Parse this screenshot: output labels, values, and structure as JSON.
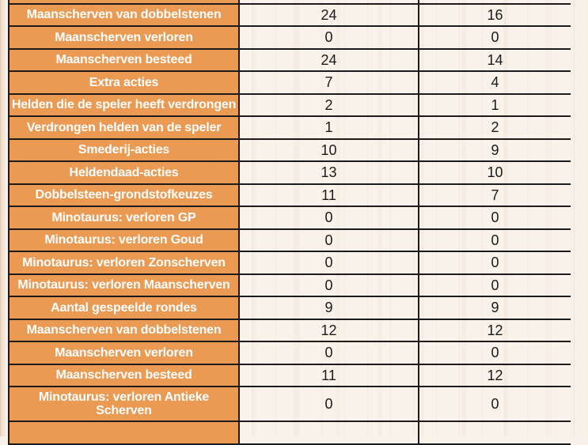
{
  "colors": {
    "page_background": "#f8f1ea",
    "table_border": "#1b1b1b",
    "label_cell_background": "#ea9a52",
    "label_text": "#ffffff",
    "value_text": "#1a1a1a"
  },
  "table": {
    "rows": [
      {
        "label": "",
        "values": [
          "",
          ""
        ]
      },
      {
        "label": "Maanscherven van dobbelstenen",
        "values": [
          "24",
          "16"
        ]
      },
      {
        "label": "Maanscherven verloren",
        "values": [
          "0",
          "0"
        ]
      },
      {
        "label": "Maanscherven besteed",
        "values": [
          "24",
          "14"
        ]
      },
      {
        "label": "Extra acties",
        "values": [
          "7",
          "4"
        ]
      },
      {
        "label": "Helden die de speler heeft verdrongen",
        "values": [
          "2",
          "1"
        ]
      },
      {
        "label": "Verdrongen helden van de speler",
        "values": [
          "1",
          "2"
        ]
      },
      {
        "label": "Smederij-acties",
        "values": [
          "10",
          "9"
        ]
      },
      {
        "label": "Heldendaad-acties",
        "values": [
          "13",
          "10"
        ]
      },
      {
        "label": "Dobbelsteen-grondstofkeuzes",
        "values": [
          "11",
          "7"
        ]
      },
      {
        "label": "Minotaurus: verloren GP",
        "values": [
          "0",
          "0"
        ]
      },
      {
        "label": "Minotaurus: verloren Goud",
        "values": [
          "0",
          "0"
        ]
      },
      {
        "label": "Minotaurus: verloren Zonscherven",
        "values": [
          "0",
          "0"
        ]
      },
      {
        "label": "Minotaurus: verloren Maanscherven",
        "values": [
          "0",
          "0"
        ]
      },
      {
        "label": "Aantal gespeelde rondes",
        "values": [
          "9",
          "9"
        ]
      },
      {
        "label": "Maanscherven van dobbelstenen",
        "values": [
          "12",
          "12"
        ]
      },
      {
        "label": "Maanscherven verloren",
        "values": [
          "0",
          "0"
        ]
      },
      {
        "label": "Maanscherven besteed",
        "values": [
          "11",
          "12"
        ]
      },
      {
        "label": "Minotaurus: verloren Antieke Scherven",
        "values": [
          "0",
          "0"
        ]
      },
      {
        "label": "",
        "values": [
          "",
          ""
        ]
      }
    ]
  }
}
